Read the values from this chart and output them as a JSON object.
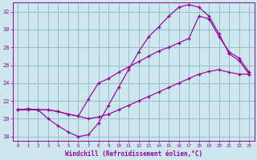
{
  "xlabel": "Windchill (Refroidissement éolien,°C)",
  "bg_color": "#cce8ee",
  "grid_color": "#99bbcc",
  "line_color": "#990099",
  "xlim": [
    -0.5,
    23.5
  ],
  "ylim": [
    17.5,
    33.0
  ],
  "xticks": [
    0,
    1,
    2,
    3,
    4,
    5,
    6,
    7,
    8,
    9,
    10,
    11,
    12,
    13,
    14,
    15,
    16,
    17,
    18,
    19,
    20,
    21,
    22,
    23
  ],
  "yticks": [
    18,
    20,
    22,
    24,
    26,
    28,
    30,
    32
  ],
  "line1_x": [
    0,
    1,
    2,
    3,
    4,
    5,
    6,
    7,
    8,
    9,
    10,
    11,
    12,
    13,
    14,
    15,
    16,
    17,
    18,
    19,
    20,
    21,
    22,
    23
  ],
  "line1_y": [
    21.0,
    21.1,
    21.0,
    20.0,
    19.2,
    18.5,
    18.0,
    18.2,
    19.5,
    21.5,
    23.5,
    25.5,
    27.5,
    29.2,
    30.3,
    31.5,
    32.5,
    32.8,
    32.5,
    31.5,
    29.5,
    27.3,
    26.5,
    25.0
  ],
  "line2_x": [
    0,
    1,
    2,
    3,
    4,
    5,
    6,
    7,
    8,
    9,
    10,
    11,
    12,
    13,
    14,
    15,
    16,
    17,
    18,
    19,
    20,
    21,
    22,
    23
  ],
  "line2_y": [
    21.0,
    21.1,
    21.0,
    21.0,
    20.8,
    20.5,
    20.3,
    22.2,
    24.0,
    24.5,
    25.2,
    25.8,
    26.4,
    27.0,
    27.6,
    28.0,
    28.5,
    29.0,
    31.5,
    31.2,
    29.2,
    27.5,
    26.8,
    25.2
  ],
  "line3_x": [
    0,
    1,
    2,
    3,
    4,
    5,
    6,
    7,
    8,
    9,
    10,
    11,
    12,
    13,
    14,
    15,
    16,
    17,
    18,
    19,
    20,
    21,
    22,
    23
  ],
  "line3_y": [
    21.0,
    21.0,
    21.0,
    21.0,
    20.8,
    20.5,
    20.3,
    20.0,
    20.2,
    20.5,
    21.0,
    21.5,
    22.0,
    22.5,
    23.0,
    23.5,
    24.0,
    24.5,
    25.0,
    25.3,
    25.5,
    25.2,
    25.0,
    25.0
  ]
}
